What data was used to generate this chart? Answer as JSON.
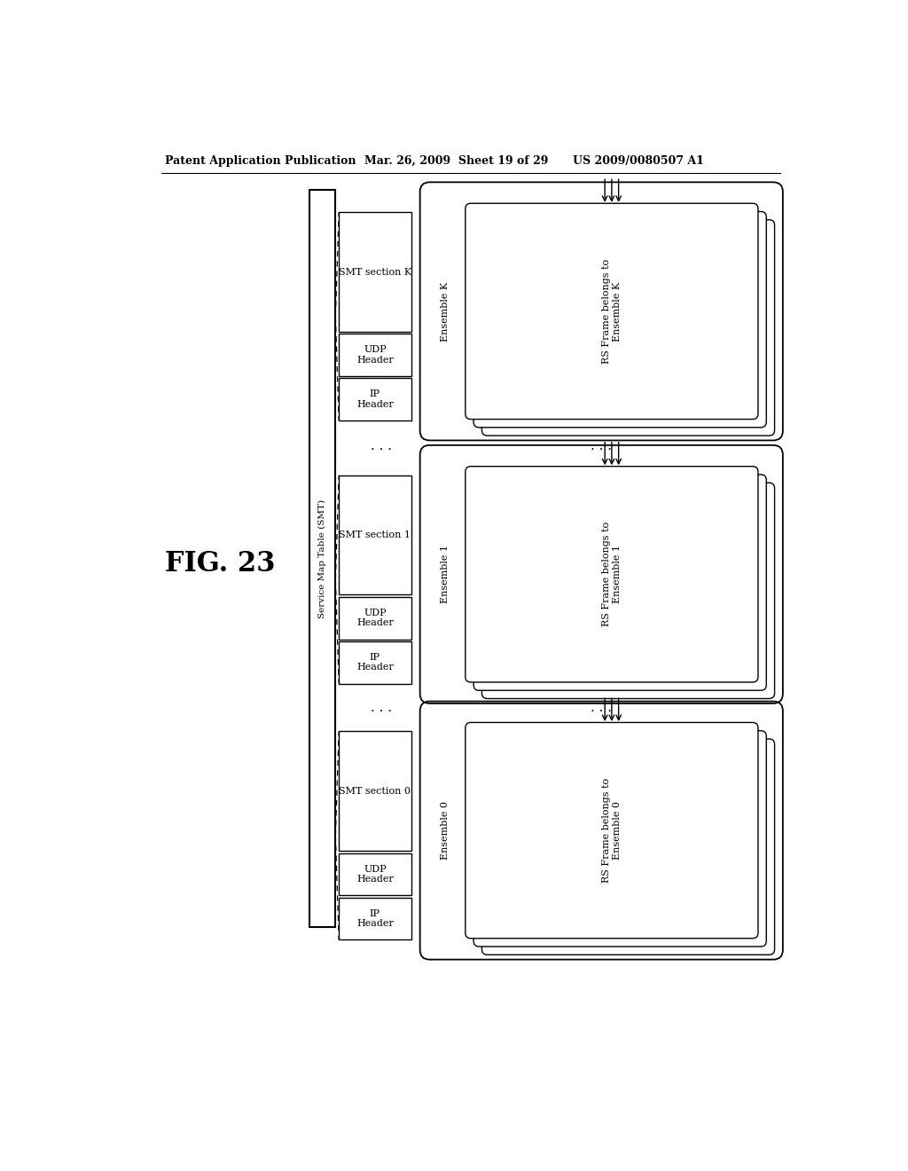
{
  "header_left": "Patent Application Publication",
  "header_mid": "Mar. 26, 2009  Sheet 19 of 29",
  "header_right": "US 2009/0080507 A1",
  "fig_label": "FIG. 23",
  "smt_big_label": "Service Map Table (SMT)",
  "sections": [
    {
      "smt_label": "SMT section K",
      "udp_label": "UDP\nHeader",
      "ip_label": "IP\nHeader",
      "ensemble_label": "Ensemble K",
      "rsframe_label": "RS Frame belongs to\nEnsemble K"
    },
    {
      "smt_label": "SMT section 1",
      "udp_label": "UDP\nHeader",
      "ip_label": "IP\nHeader",
      "ensemble_label": "Ensemble 1",
      "rsframe_label": "RS Frame belongs to\nEnsemble 1"
    },
    {
      "smt_label": "SMT section 0",
      "udp_label": "UDP\nHeader",
      "ip_label": "IP\nHeader",
      "ensemble_label": "Ensemble 0",
      "rsframe_label": "RS Frame belongs to\nEnsemble 0"
    }
  ],
  "bg_color": "#ffffff",
  "line_color": "#000000"
}
